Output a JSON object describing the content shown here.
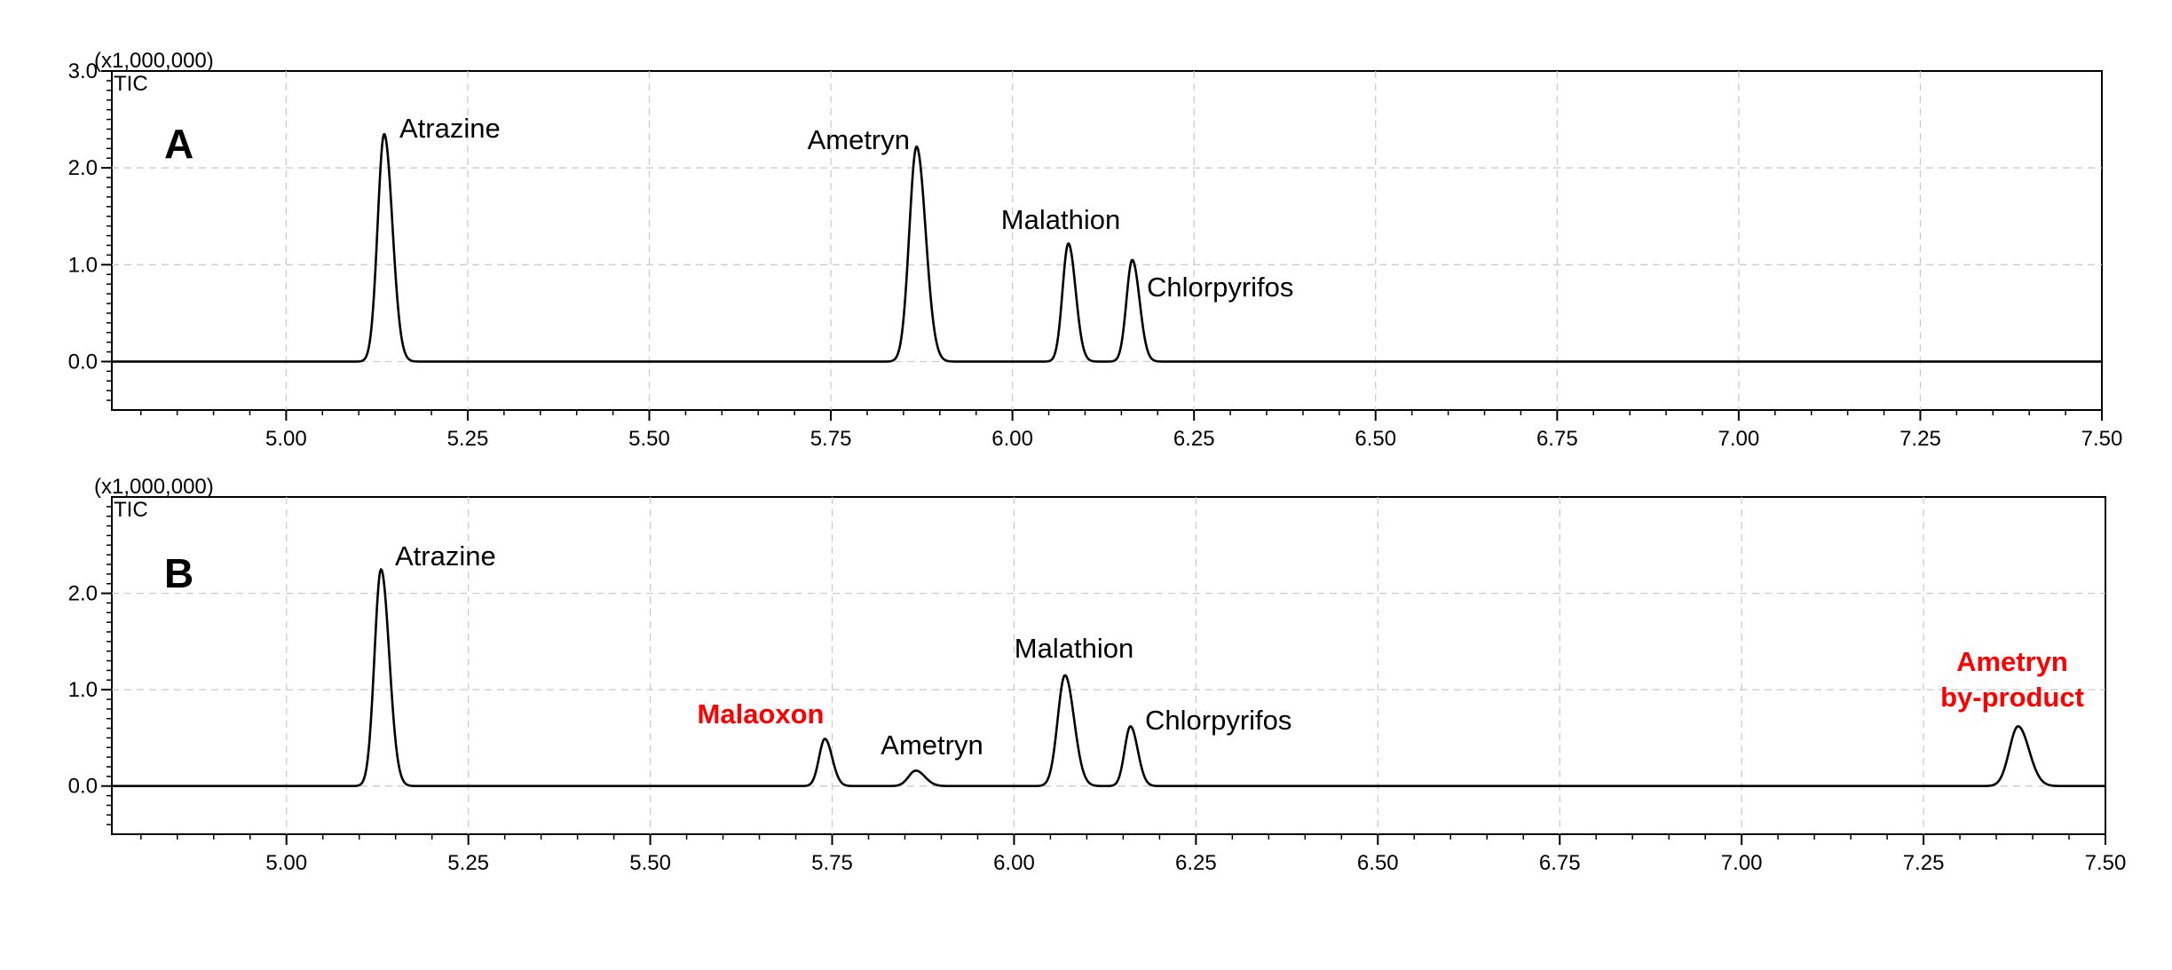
{
  "chart_data": [
    {
      "type": "line",
      "panel_label": "A",
      "multiplier_label": "(x1,000,000)",
      "trace_label": "TIC",
      "xlim": [
        4.76,
        7.5
      ],
      "ylim": [
        -0.5,
        3.0
      ],
      "x_ticks": [
        "5.00",
        "5.25",
        "5.50",
        "5.75",
        "6.00",
        "6.25",
        "6.50",
        "6.75",
        "7.00",
        "7.25",
        "7.50"
      ],
      "y_ticks": [
        "0.0",
        "1.0",
        "2.0",
        "3.0"
      ],
      "grid": true,
      "peaks": [
        {
          "name": "Atrazine",
          "x": 5.135,
          "height": 2.35,
          "width": 0.009,
          "color": "#000000"
        },
        {
          "name": "Ametryn",
          "x": 5.868,
          "height": 2.22,
          "width": 0.01,
          "color": "#000000"
        },
        {
          "name": "Malathion",
          "x": 6.077,
          "height": 1.22,
          "width": 0.008,
          "color": "#000000"
        },
        {
          "name": "Chlorpyrifos",
          "x": 6.165,
          "height": 1.05,
          "width": 0.008,
          "color": "#000000"
        }
      ]
    },
    {
      "type": "line",
      "panel_label": "B",
      "multiplier_label": "(x1,000,000)",
      "trace_label": "TIC",
      "xlim": [
        4.76,
        7.5
      ],
      "ylim": [
        -0.5,
        3.0
      ],
      "x_ticks": [
        "5.00",
        "5.25",
        "5.50",
        "5.75",
        "6.00",
        "6.25",
        "6.50",
        "6.75",
        "7.00",
        "7.25",
        "7.50"
      ],
      "y_ticks": [
        "0.0",
        "1.0",
        "2.0"
      ],
      "grid": true,
      "peaks": [
        {
          "name": "Atrazine",
          "x": 5.13,
          "height": 2.25,
          "width": 0.009,
          "color": "#000000"
        },
        {
          "name": "Malaoxon",
          "x": 5.74,
          "height": 0.49,
          "width": 0.008,
          "color": "#ff0000"
        },
        {
          "name": "Ametryn",
          "x": 5.865,
          "height": 0.16,
          "width": 0.01,
          "color": "#000000"
        },
        {
          "name": "Malathion",
          "x": 6.07,
          "height": 1.15,
          "width": 0.01,
          "color": "#000000"
        },
        {
          "name": "Chlorpyrifos",
          "x": 6.16,
          "height": 0.62,
          "width": 0.008,
          "color": "#000000"
        },
        {
          "name": "Ametryn by-product",
          "x": 7.38,
          "height": 0.62,
          "width": 0.012,
          "color": "#ff0000"
        }
      ]
    }
  ]
}
